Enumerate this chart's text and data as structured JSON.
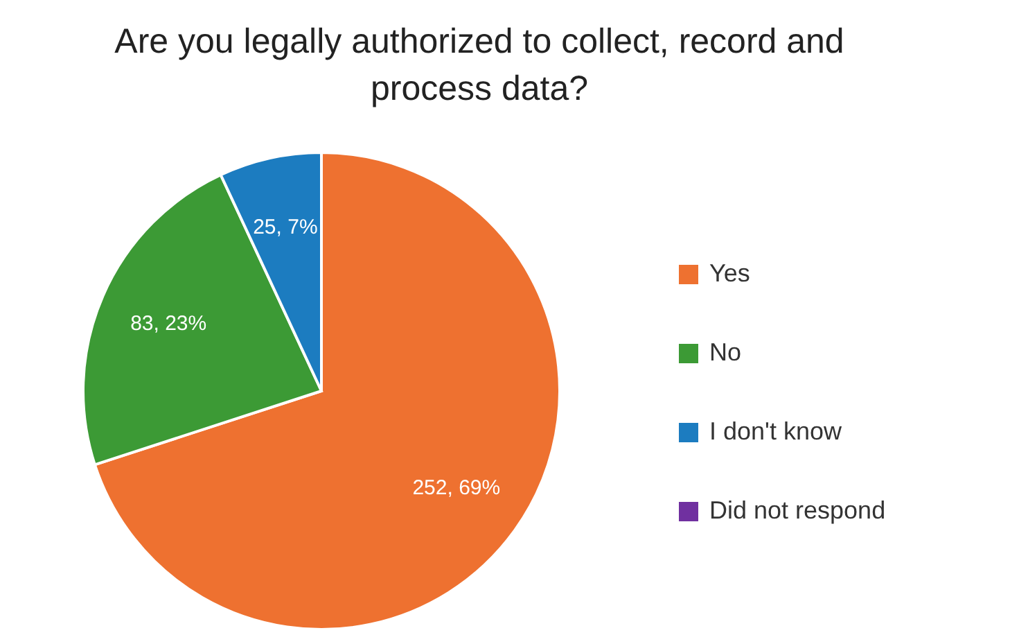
{
  "chart_data": {
    "type": "pie",
    "title": "Are you legally authorized to collect, record and process data?",
    "categories": [
      "Yes",
      "No",
      "I don't know",
      "Did not respond"
    ],
    "values": [
      252,
      83,
      25,
      0
    ],
    "value_labels": [
      "252, 69%",
      "83, 23%",
      "25, 7%",
      null
    ],
    "colors": [
      "#ee7130",
      "#3c9a35",
      "#1c7cc0",
      "#7030a0"
    ],
    "legend": "right"
  }
}
